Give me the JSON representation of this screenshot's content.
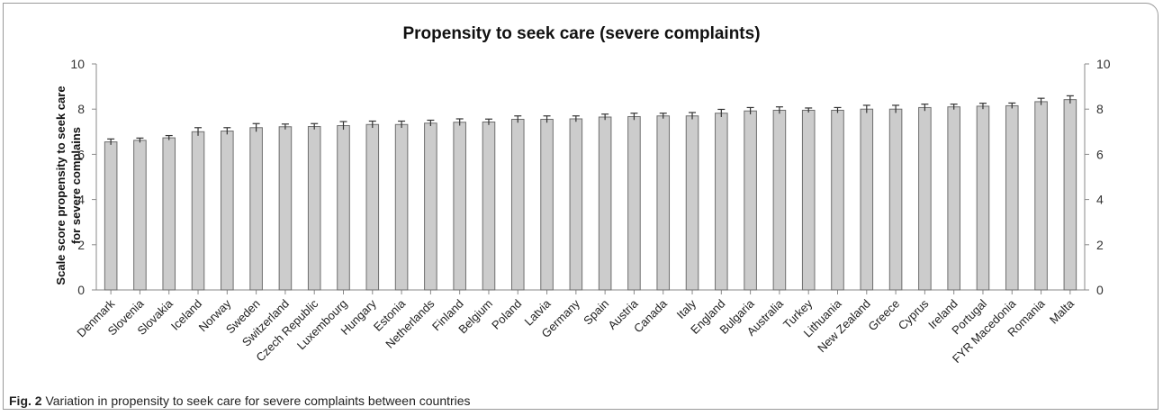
{
  "figure": {
    "caption_label": "Fig. 2",
    "caption_text": "Variation in propensity to seek care for severe complaints between countries"
  },
  "chart_data": {
    "type": "bar",
    "title": "Propensity to seek care (severe complaints)",
    "ylabel_line1": "Scale score propensity to seek care",
    "ylabel_line2": "for severe complains",
    "xlabel": "",
    "ylim": [
      0,
      10
    ],
    "yticks": [
      0,
      2,
      4,
      6,
      8,
      10
    ],
    "secondary_axis": true,
    "grid": false,
    "bar_color": "#cccccc",
    "bar_stroke": "#6e6e6e",
    "categories": [
      "Denmark",
      "Slovenia",
      "Slovakia",
      "Iceland",
      "Norway",
      "Sweden",
      "Switzerland",
      "Czech Republic",
      "Luxembourg",
      "Hungary",
      "Estonia",
      "Netherlands",
      "Finland",
      "Belgium",
      "Poland",
      "Latvia",
      "Germany",
      "Spain",
      "Austria",
      "Canada",
      "Italy",
      "England",
      "Bulgaria",
      "Australia",
      "Turkey",
      "Lithuania",
      "New Zealand",
      "Greece",
      "Cyprus",
      "Ireland",
      "Portugal",
      "FYR Macedonia",
      "Romania",
      "Malta"
    ],
    "values": [
      6.55,
      6.62,
      6.73,
      7.0,
      7.03,
      7.18,
      7.22,
      7.23,
      7.27,
      7.32,
      7.32,
      7.38,
      7.42,
      7.43,
      7.55,
      7.55,
      7.57,
      7.65,
      7.67,
      7.7,
      7.7,
      7.82,
      7.92,
      7.95,
      7.95,
      7.95,
      8.0,
      8.0,
      8.07,
      8.1,
      8.13,
      8.15,
      8.33,
      8.42
    ],
    "errors": [
      0.13,
      0.1,
      0.1,
      0.18,
      0.15,
      0.18,
      0.12,
      0.13,
      0.18,
      0.15,
      0.15,
      0.13,
      0.15,
      0.13,
      0.15,
      0.15,
      0.13,
      0.13,
      0.15,
      0.12,
      0.15,
      0.17,
      0.15,
      0.15,
      0.1,
      0.12,
      0.17,
      0.17,
      0.15,
      0.12,
      0.13,
      0.12,
      0.15,
      0.17
    ]
  }
}
